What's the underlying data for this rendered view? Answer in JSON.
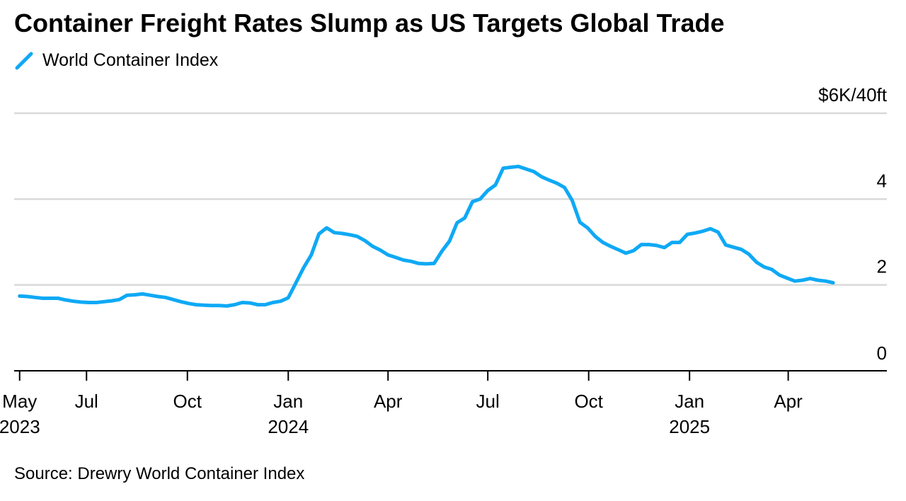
{
  "title": "Container Freight Rates Slump as US Targets Global Trade",
  "source": "Source: Drewry World Container Index",
  "colors": {
    "series": "#0fa9f5",
    "grid": "#d9d9d9",
    "axis": "#000000"
  },
  "chart_data": {
    "type": "line",
    "title": "Container Freight Rates Slump as US Targets Global Trade",
    "xlabel": "",
    "ylabel": "$6K/40ft",
    "y_unit_label": "$6K/40ft",
    "ylim": [
      0,
      6
    ],
    "xlim": [
      "2023-04-26",
      "2025-06-30"
    ],
    "y_ticks": [
      {
        "value": 0,
        "label": "0"
      },
      {
        "value": 2,
        "label": "2"
      },
      {
        "value": 4,
        "label": "4"
      },
      {
        "value": 6,
        "label": "$6K/40ft"
      }
    ],
    "x_ticks": [
      {
        "date": "2023-05-01",
        "label": "May",
        "year": "2023"
      },
      {
        "date": "2023-07-01",
        "label": "Jul",
        "year": ""
      },
      {
        "date": "2023-10-01",
        "label": "Oct",
        "year": ""
      },
      {
        "date": "2024-01-01",
        "label": "Jan",
        "year": "2024"
      },
      {
        "date": "2024-04-01",
        "label": "Apr",
        "year": ""
      },
      {
        "date": "2024-07-01",
        "label": "Jul",
        "year": ""
      },
      {
        "date": "2024-10-01",
        "label": "Oct",
        "year": ""
      },
      {
        "date": "2025-01-01",
        "label": "Jan",
        "year": "2025"
      },
      {
        "date": "2025-04-01",
        "label": "Apr",
        "year": ""
      }
    ],
    "grid": true,
    "legend": "top-left",
    "series": [
      {
        "name": "World Container Index",
        "color": "#0fa9f5",
        "points": [
          [
            "2023-05-01",
            1.74
          ],
          [
            "2023-05-08",
            1.73
          ],
          [
            "2023-05-15",
            1.71
          ],
          [
            "2023-05-22",
            1.69
          ],
          [
            "2023-05-29",
            1.69
          ],
          [
            "2023-06-05",
            1.69
          ],
          [
            "2023-06-12",
            1.65
          ],
          [
            "2023-06-19",
            1.62
          ],
          [
            "2023-06-26",
            1.6
          ],
          [
            "2023-07-03",
            1.59
          ],
          [
            "2023-07-10",
            1.59
          ],
          [
            "2023-07-17",
            1.61
          ],
          [
            "2023-07-24",
            1.63
          ],
          [
            "2023-07-31",
            1.66
          ],
          [
            "2023-08-07",
            1.76
          ],
          [
            "2023-08-14",
            1.77
          ],
          [
            "2023-08-21",
            1.79
          ],
          [
            "2023-08-28",
            1.76
          ],
          [
            "2023-09-04",
            1.73
          ],
          [
            "2023-09-11",
            1.71
          ],
          [
            "2023-09-18",
            1.66
          ],
          [
            "2023-09-25",
            1.61
          ],
          [
            "2023-10-02",
            1.57
          ],
          [
            "2023-10-09",
            1.54
          ],
          [
            "2023-10-16",
            1.53
          ],
          [
            "2023-10-23",
            1.52
          ],
          [
            "2023-10-30",
            1.52
          ],
          [
            "2023-11-06",
            1.51
          ],
          [
            "2023-11-13",
            1.54
          ],
          [
            "2023-11-20",
            1.59
          ],
          [
            "2023-11-27",
            1.58
          ],
          [
            "2023-12-04",
            1.54
          ],
          [
            "2023-12-11",
            1.54
          ],
          [
            "2023-12-18",
            1.59
          ],
          [
            "2023-12-25",
            1.62
          ],
          [
            "2024-01-01",
            1.7
          ],
          [
            "2024-01-08",
            2.05
          ],
          [
            "2024-01-15",
            2.4
          ],
          [
            "2024-01-22",
            2.7
          ],
          [
            "2024-01-29",
            3.19
          ],
          [
            "2024-02-05",
            3.33
          ],
          [
            "2024-02-12",
            3.22
          ],
          [
            "2024-02-19",
            3.2
          ],
          [
            "2024-02-26",
            3.17
          ],
          [
            "2024-03-04",
            3.13
          ],
          [
            "2024-03-11",
            3.03
          ],
          [
            "2024-03-18",
            2.9
          ],
          [
            "2024-03-25",
            2.81
          ],
          [
            "2024-04-01",
            2.7
          ],
          [
            "2024-04-08",
            2.64
          ],
          [
            "2024-04-15",
            2.58
          ],
          [
            "2024-04-22",
            2.55
          ],
          [
            "2024-04-29",
            2.5
          ],
          [
            "2024-05-06",
            2.49
          ],
          [
            "2024-05-13",
            2.5
          ],
          [
            "2024-05-20",
            2.78
          ],
          [
            "2024-05-27",
            3.02
          ],
          [
            "2024-06-03",
            3.45
          ],
          [
            "2024-06-10",
            3.56
          ],
          [
            "2024-06-17",
            3.94
          ],
          [
            "2024-06-24",
            4.0
          ],
          [
            "2024-07-01",
            4.2
          ],
          [
            "2024-07-08",
            4.33
          ],
          [
            "2024-07-15",
            4.72
          ],
          [
            "2024-07-22",
            4.74
          ],
          [
            "2024-07-29",
            4.76
          ],
          [
            "2024-08-05",
            4.7
          ],
          [
            "2024-08-12",
            4.64
          ],
          [
            "2024-08-19",
            4.52
          ],
          [
            "2024-08-26",
            4.44
          ],
          [
            "2024-09-02",
            4.37
          ],
          [
            "2024-09-09",
            4.27
          ],
          [
            "2024-09-16",
            3.97
          ],
          [
            "2024-09-23",
            3.46
          ],
          [
            "2024-09-30",
            3.33
          ],
          [
            "2024-10-07",
            3.13
          ],
          [
            "2024-10-14",
            2.99
          ],
          [
            "2024-10-21",
            2.9
          ],
          [
            "2024-10-28",
            2.82
          ],
          [
            "2024-11-04",
            2.74
          ],
          [
            "2024-11-11",
            2.8
          ],
          [
            "2024-11-18",
            2.94
          ],
          [
            "2024-11-25",
            2.94
          ],
          [
            "2024-12-02",
            2.92
          ],
          [
            "2024-12-09",
            2.87
          ],
          [
            "2024-12-16",
            2.99
          ],
          [
            "2024-12-23",
            2.99
          ],
          [
            "2024-12-30",
            3.18
          ],
          [
            "2025-01-06",
            3.21
          ],
          [
            "2025-01-13",
            3.25
          ],
          [
            "2025-01-20",
            3.31
          ],
          [
            "2025-01-27",
            3.23
          ],
          [
            "2025-02-03",
            2.93
          ],
          [
            "2025-02-10",
            2.88
          ],
          [
            "2025-02-17",
            2.83
          ],
          [
            "2025-02-24",
            2.72
          ],
          [
            "2025-03-03",
            2.53
          ],
          [
            "2025-03-10",
            2.42
          ],
          [
            "2025-03-17",
            2.36
          ],
          [
            "2025-03-24",
            2.23
          ],
          [
            "2025-03-31",
            2.16
          ],
          [
            "2025-04-07",
            2.09
          ],
          [
            "2025-04-14",
            2.11
          ],
          [
            "2025-04-21",
            2.15
          ],
          [
            "2025-04-28",
            2.11
          ],
          [
            "2025-05-05",
            2.09
          ],
          [
            "2025-05-12",
            2.05
          ]
        ]
      }
    ]
  }
}
